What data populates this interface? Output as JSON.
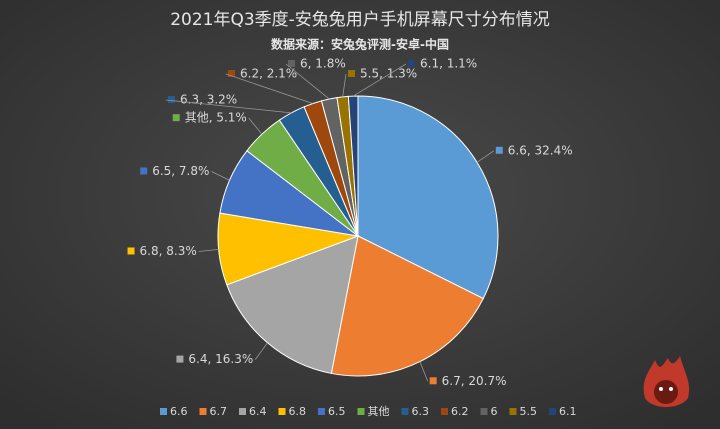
{
  "chart_data": {
    "type": "pie",
    "title": "2021年Q3季度-安兔兔用户手机屏幕尺寸分布情况",
    "subtitle": "数据来源：安兔兔评测-安卓-中国",
    "categories": [
      "6.6",
      "6.7",
      "6.4",
      "6.8",
      "6.5",
      "其他",
      "6.3",
      "6.2",
      "6",
      "5.5",
      "6.1"
    ],
    "values": [
      32.4,
      20.7,
      16.3,
      8.3,
      7.8,
      5.1,
      3.2,
      2.1,
      1.8,
      1.3,
      1.1
    ],
    "value_labels": [
      "6.6, 32.4%",
      "6.7, 20.7%",
      "6.4, 16.3%",
      "6.8, 8.3%",
      "6.5, 7.8%",
      "其他, 5.1%",
      "6.3, 3.2%",
      "6.2, 2.1%",
      "6, 1.8%",
      "5.5, 1.3%",
      "6.1, 1.1%"
    ],
    "colors": [
      "#5b9bd5",
      "#ed7d31",
      "#a5a5a5",
      "#ffc000",
      "#4472c4",
      "#70ad47",
      "#255e91",
      "#9e480e",
      "#636363",
      "#997300",
      "#264478"
    ],
    "legend": "bottom"
  }
}
